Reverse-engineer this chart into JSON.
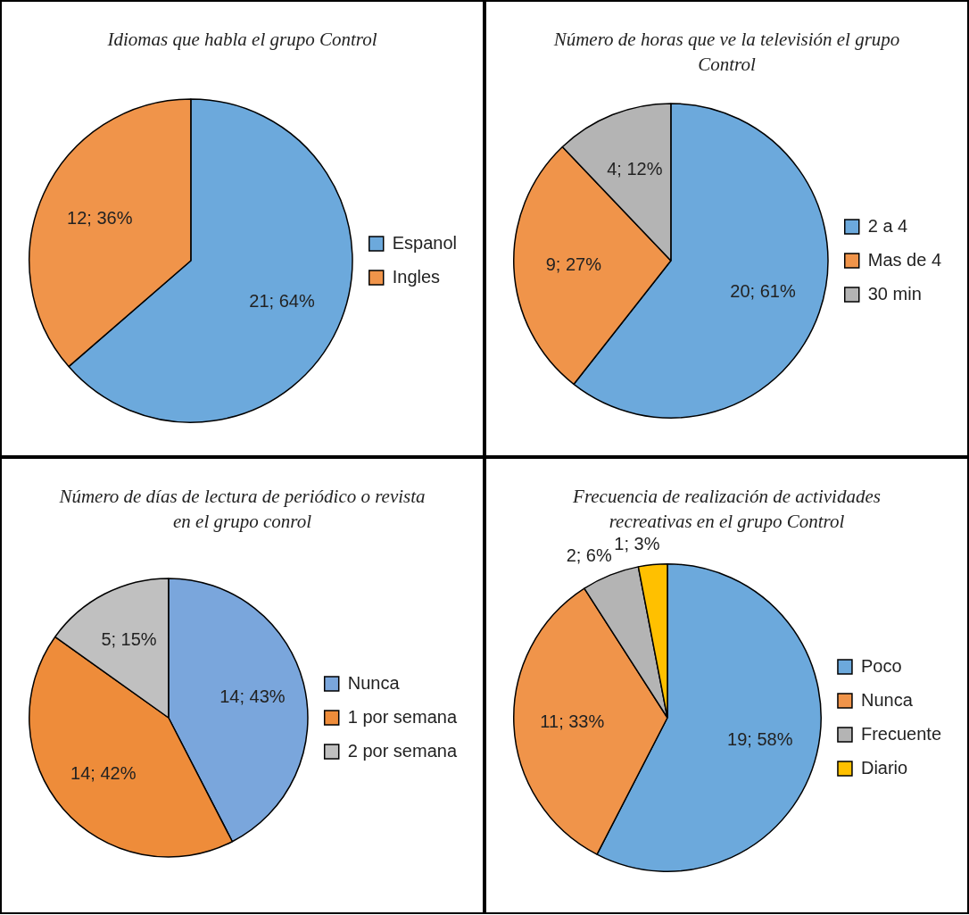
{
  "chart_data": [
    {
      "type": "pie",
      "title": "Idiomas que habla el grupo Control",
      "categories": [
        "Espanol",
        "Ingles"
      ],
      "values": [
        21,
        12
      ],
      "colors": [
        "#6ca9dc",
        "#f0944a"
      ],
      "value_labels": [
        "21; 64%",
        "12; 36%"
      ],
      "legend": "right"
    },
    {
      "type": "pie",
      "title": "Número de horas que ve la televisión el grupo Control",
      "categories": [
        "2 a 4",
        "Mas de 4",
        "30 min"
      ],
      "values": [
        20,
        9,
        4
      ],
      "colors": [
        "#6ca9dc",
        "#f0944a",
        "#b4b4b4"
      ],
      "value_labels": [
        "20; 61%",
        "9; 27%",
        "4; 12%"
      ],
      "legend": "right"
    },
    {
      "type": "pie",
      "title": "Número de días de lectura de periódico o revista en el grupo  conrol",
      "categories": [
        "Nunca",
        "1 por semana",
        "2 por semana"
      ],
      "values": [
        14,
        14,
        5
      ],
      "colors": [
        "#7aa6dc",
        "#ee8c3a",
        "#c0c0c0"
      ],
      "value_labels": [
        "14; 43%",
        "14; 42%",
        "5; 15%"
      ],
      "legend": "right"
    },
    {
      "type": "pie",
      "title": "Frecuencia de realización de actividades recreativas en el grupo Control",
      "categories": [
        "Poco",
        "Nunca",
        "Frecuente",
        "Diario"
      ],
      "values": [
        19,
        11,
        2,
        1
      ],
      "colors": [
        "#6ca9dc",
        "#f0944a",
        "#b4b4b4",
        "#ffc000"
      ],
      "value_labels": [
        "19; 58%",
        "11; 33%",
        "2; 6%",
        "1; 3%"
      ],
      "legend": "right"
    }
  ]
}
